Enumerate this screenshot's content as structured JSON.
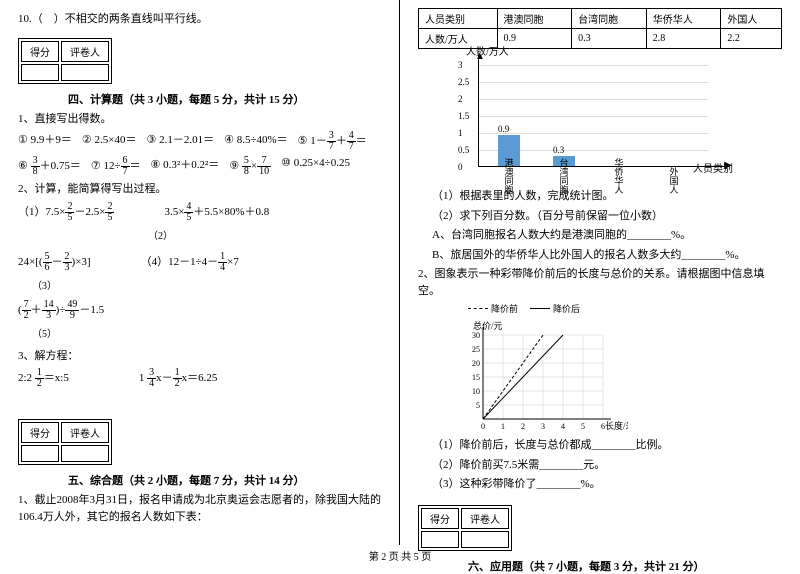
{
  "left": {
    "q10": "10.（　）不相交的两条直线叫平行线。",
    "scoreHeaders": [
      "得分",
      "评卷人"
    ],
    "section4": "四、计算题（共 3 小题，每题 5 分，共计 15 分）",
    "q1": "1、直接写出得数。",
    "items1": [
      "① 9.9＋9＝",
      "② 2.5×40＝",
      "③ 2.1－2.01＝",
      "④ 8.5÷40%＝"
    ],
    "item5_pre": "⑤ 1－",
    "item5_mid": "＋",
    "item6_pre": "⑥ ",
    "item6_mid": "＋0.75＝",
    "item7_pre": "⑦ 12÷",
    "item7_post": "＝",
    "item8": "⑧ 0.3²＋0.2²＝",
    "item9_pre": "⑨ ",
    "item9_mid": "×",
    "item10": "⑩ 0.25×4÷0.25",
    "q2": "2、计算，能简算得写出过程。",
    "c1_pre": "（1）7.5×",
    "c1_mid": "－2.5×",
    "c2_pre": "3.5×",
    "c2_post": "＋5.5×80%＋0.8",
    "c2_num": "（2）",
    "c3_pre": "24×",
    "c3_open": "[(",
    "c3_mid": "－",
    "c3_close": ")×3]",
    "c3_num": "（3）",
    "c4_pre": "（4）12－1÷4－",
    "c4_post": "×7",
    "c5_open": "(",
    "c5_mid": "＋",
    "c5_close": ")÷",
    "c5_post": "－1.5",
    "c5_num": "（5）",
    "q3": "3、解方程：",
    "eq1_pre": "2:2 ",
    "eq1_post": "＝x:5",
    "eq2_pre": "1 ",
    "eq2_mid": "x－",
    "eq2_post": "x＝6.25",
    "section5": "五、综合题（共 2 小题，每题 7 分，共计 14 分）",
    "q5_1": "1、截止2008年3月31日，报名申请成为北京奥运会志愿者的，除我国大陆的106.4万人外，其它的报名人数如下表：",
    "f3_7": {
      "n": "3",
      "d": "7"
    },
    "f4_7": {
      "n": "4",
      "d": "7"
    },
    "f3_8": {
      "n": "3",
      "d": "8"
    },
    "f6_7": {
      "n": "6",
      "d": "7"
    },
    "f5_8": {
      "n": "5",
      "d": "8"
    },
    "f7_10": {
      "n": "7",
      "d": "10"
    },
    "f2_5": {
      "n": "2",
      "d": "5"
    },
    "f4_5": {
      "n": "4",
      "d": "5"
    },
    "f5_6": {
      "n": "5",
      "d": "6"
    },
    "f2_3": {
      "n": "2",
      "d": "3"
    },
    "f1_4": {
      "n": "1",
      "d": "4"
    },
    "f7_2": {
      "n": "7",
      "d": "2"
    },
    "f14_3": {
      "n": "14",
      "d": "3"
    },
    "f49_9": {
      "n": "49",
      "d": "9"
    },
    "f1_2": {
      "n": "1",
      "d": "2"
    },
    "f3_4": {
      "n": "3",
      "d": "4"
    }
  },
  "right": {
    "tableHeaders": [
      "人员类别",
      "港澳同胞",
      "台湾同胞",
      "华侨华人",
      "外国人"
    ],
    "tableRow": [
      "人数/万人",
      "0.9",
      "0.3",
      "2.8",
      "2.2"
    ],
    "chart1": {
      "ytitle": "人数/万人",
      "xtitle": "人员类别",
      "yticks": [
        "0",
        "0.5",
        "1",
        "1.5",
        "2",
        "2.5",
        "3"
      ],
      "bars": [
        {
          "label": "港澳同胞",
          "value": 0.9,
          "text": "0.9"
        },
        {
          "label": "台湾同胞",
          "value": 0.3,
          "text": "0.3"
        },
        {
          "label": "华侨华人",
          "value": 0,
          "text": ""
        },
        {
          "label": "外国人",
          "value": 0,
          "text": ""
        }
      ],
      "barColor": "#5b9bd5",
      "yMax": 3,
      "pxPerUnit": 34
    },
    "sub1": "（1）根据表里的人数，完成统计图。",
    "sub2": "（2）求下列百分数。（百分号前保留一位小数）",
    "subA": "A、台湾同胞报名人数大约是港澳同胞的________%。",
    "subB": "B、旅居国外的华侨华人比外国人的报名人数多大约________%。",
    "q2": "2、图象表示一种彩带降价前后的长度与总价的关系。请根据图中信息填空。",
    "legend": {
      "a": "降价前",
      "b": "降价后"
    },
    "chart2": {
      "xtitle": "长度/米",
      "ytitle": "总价/元",
      "xticks": [
        "0",
        "1",
        "2",
        "3",
        "4",
        "5",
        "6"
      ],
      "yticks": [
        "0",
        "5",
        "10",
        "15",
        "20",
        "25",
        "30"
      ],
      "line1": [
        [
          0,
          0
        ],
        [
          3,
          30
        ]
      ],
      "line2": [
        [
          0,
          0
        ],
        [
          4,
          30
        ]
      ]
    },
    "sub2_1": "（1）降价前后，长度与总价都成________比例。",
    "sub2_2": "（2）降价前买7.5米需________元。",
    "sub2_3": "（3）这种彩带降价了________%。",
    "section6": "六、应用题（共 7 小题，每题 3 分，共计 21 分）",
    "scoreHeaders": [
      "得分",
      "评卷人"
    ]
  },
  "footer": "第 2 页 共 5 页"
}
